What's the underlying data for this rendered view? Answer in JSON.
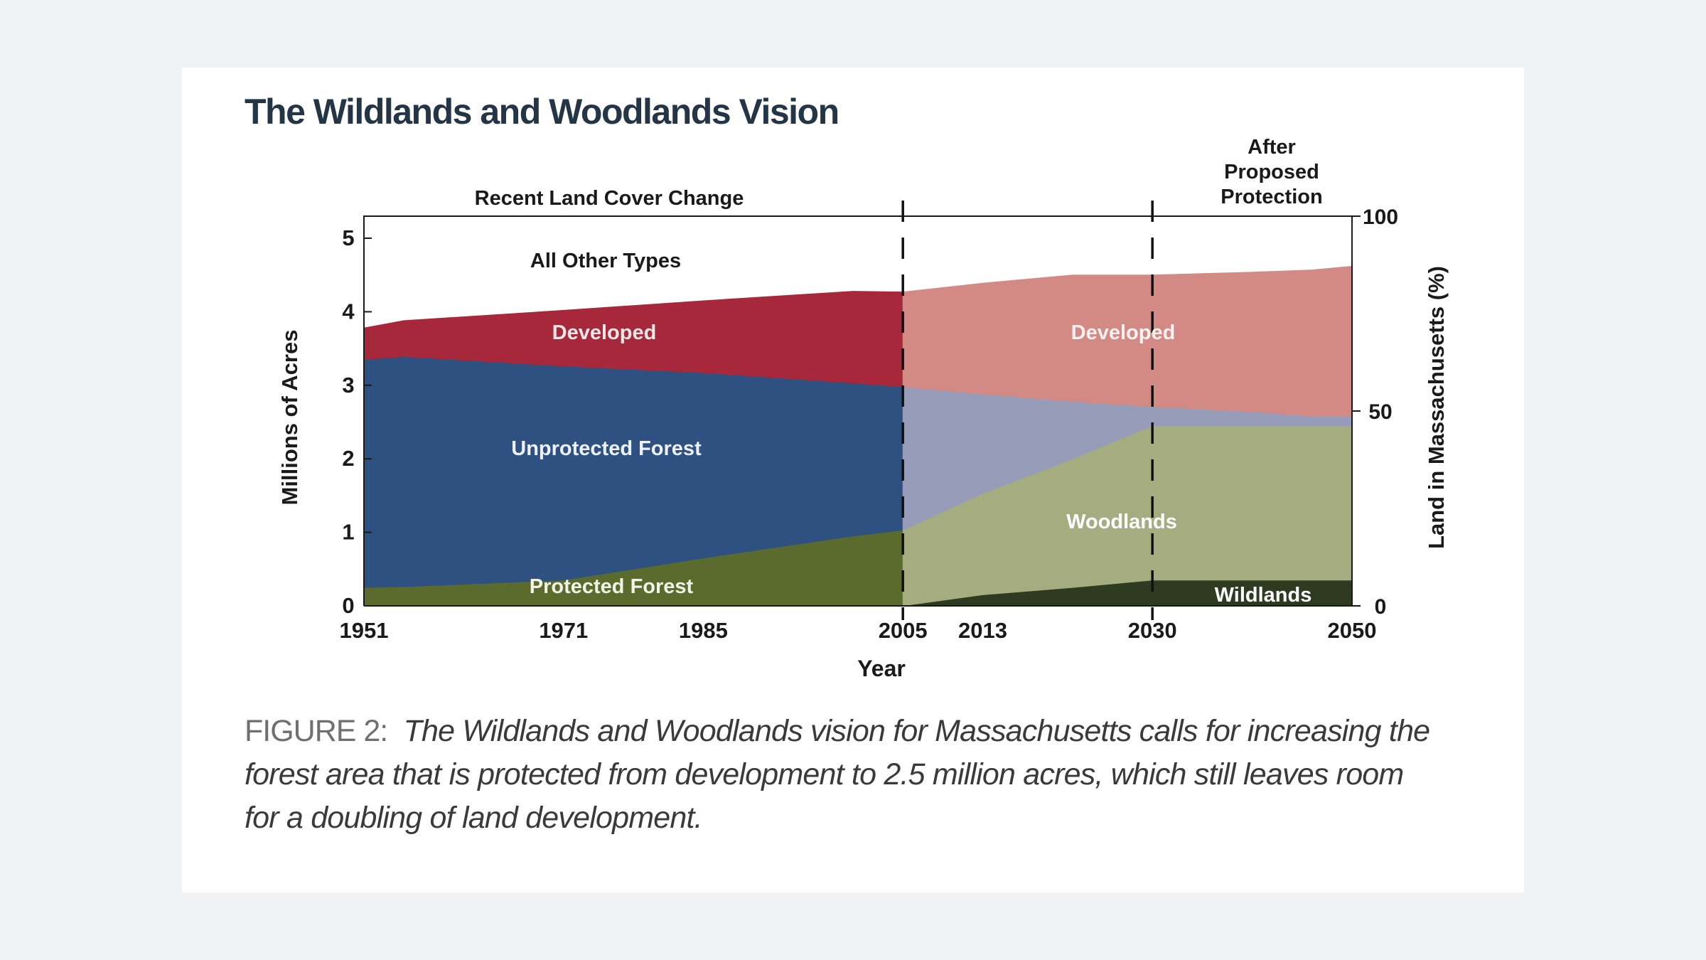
{
  "title": "The Wildlands and Woodlands Vision",
  "caption": {
    "label": "FIGURE 2:",
    "text": "The Wildlands and Woodlands vision for Massachusetts calls for increasing the forest area that is protected from development to 2.5 million acres, which still leaves room for a doubling of land development."
  },
  "colors": {
    "developed_historic": "#a6283a",
    "unprotected_historic": "#2f5181",
    "protected_historic": "#5b6a2d",
    "developed_future": "#d38a85",
    "unprotected_future": "#979cb8",
    "woodlands_future": "#a4ac80",
    "wildlands_future": "#2e3b20",
    "text": "#1a1a1a"
  },
  "chart_data": {
    "type": "area",
    "stacked": true,
    "x": [
      1951,
      1955,
      1971,
      1985,
      2000,
      2005,
      2013,
      2022,
      2030,
      2040,
      2046,
      2050
    ],
    "x_ticks": [
      "1951",
      "1971",
      "1985",
      "2005",
      "2013",
      "2030",
      "2050"
    ],
    "xlabel": "Year",
    "ylabel": "Millions of Acres",
    "ylabel_right": "Land in Massachusetts (%)",
    "ylim": [
      0,
      5.3
    ],
    "y_ticks": [
      "0",
      "1",
      "2",
      "3",
      "4",
      "5"
    ],
    "y_right_ticks": [
      "0",
      "50",
      "100"
    ],
    "period_labels": {
      "recent": "Recent Land Cover Change",
      "after": [
        "After",
        "Proposed",
        "Protection"
      ]
    },
    "period_dividers": [
      2005,
      2030
    ],
    "periods": [
      {
        "name": "historic",
        "x": [
          1951,
          1955,
          1971,
          1985,
          2000,
          2005
        ],
        "series": [
          {
            "name": "Protected Forest",
            "values": [
              0.25,
              0.26,
              0.35,
              0.65,
              0.95,
              1.03
            ]
          },
          {
            "name": "Unprotected Forest",
            "values": [
              3.1,
              3.13,
              2.91,
              2.52,
              2.08,
              1.95
            ]
          },
          {
            "name": "Developed",
            "values": [
              0.43,
              0.49,
              0.76,
              0.98,
              1.25,
              1.29
            ]
          }
        ]
      },
      {
        "name": "future",
        "x": [
          2005,
          2013,
          2022,
          2030,
          2040,
          2046,
          2050
        ],
        "series": [
          {
            "name": "Wildlands",
            "values": [
              0.0,
              0.15,
              0.25,
              0.35,
              0.35,
              0.35,
              0.35
            ]
          },
          {
            "name": "Woodlands",
            "values": [
              1.03,
              1.38,
              1.75,
              2.1,
              2.1,
              2.1,
              2.1
            ]
          },
          {
            "name": "Unprotected Forest",
            "values": [
              1.95,
              1.35,
              0.78,
              0.26,
              0.19,
              0.13,
              0.13
            ]
          },
          {
            "name": "Developed",
            "values": [
              1.29,
              1.51,
              1.72,
              1.79,
              1.9,
              1.99,
              2.04
            ]
          }
        ]
      }
    ],
    "area_labels": {
      "all_other": "All Other Types",
      "developed_left": "Developed",
      "developed_right": "Developed",
      "unprotected": "Unprotected Forest",
      "protected": "Protected Forest",
      "woodlands": "Woodlands",
      "wildlands": "Wildlands"
    }
  }
}
